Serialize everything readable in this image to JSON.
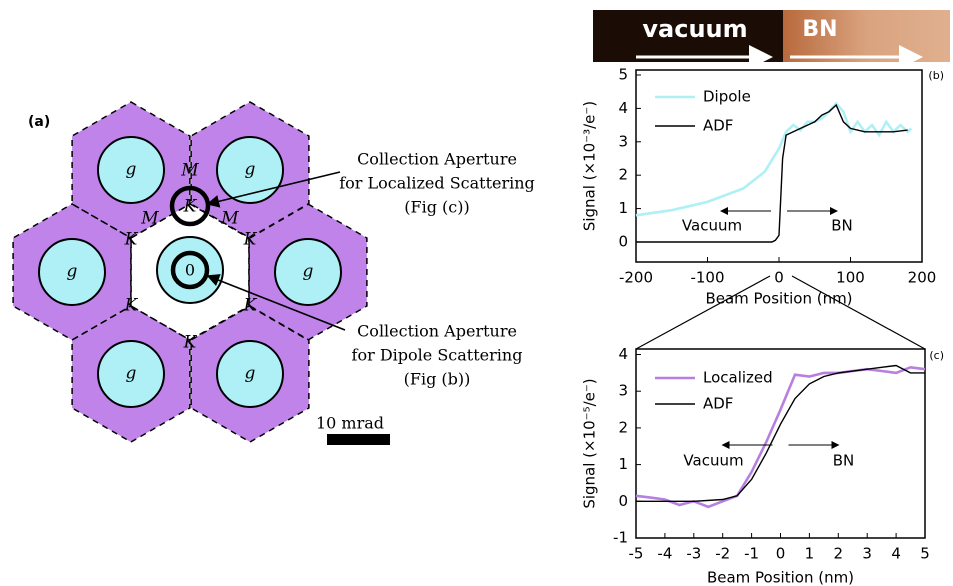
{
  "diagram": {
    "label": "(a)",
    "cell_labels": [
      "g",
      "g",
      "g",
      "g",
      "g",
      "g"
    ],
    "m_labels": [
      "M",
      "M",
      "M"
    ],
    "k_labels": [
      "K",
      "K",
      "K",
      "K",
      "K"
    ],
    "aperture_label": "K",
    "origin_label": "0",
    "callouts": [
      [
        "Collection Aperture",
        "for Localized Scattering",
        "(Fig   (c))"
      ],
      [
        "Collection Aperture",
        "for Dipole Scattering",
        "(Fig   (b))"
      ]
    ],
    "scale_bar": "10 mrad"
  },
  "image_strip": {
    "left": "vacuum",
    "right": "BN"
  },
  "chart_data": [
    {
      "type": "line",
      "label": "(b)",
      "xlabel": "Beam Position (nm)",
      "ylabel": "Signal (×10⁻³/e⁻)",
      "xlim": [
        -200,
        200
      ],
      "ylim": [
        -0.6,
        5.15
      ],
      "xticks": [
        -200,
        -100,
        0,
        100,
        200
      ],
      "yticks": [
        0,
        1,
        2,
        3,
        4,
        5
      ],
      "annotations": [
        "Vacuum",
        "BN"
      ],
      "series": [
        {
          "name": "Dipole",
          "color": "#aef0f5",
          "x": [
            -200,
            -150,
            -100,
            -50,
            -20,
            0,
            10,
            20,
            30,
            40,
            50,
            60,
            70,
            80,
            90,
            100,
            110,
            120,
            130,
            140,
            150,
            160,
            170,
            180,
            185
          ],
          "values": [
            0.8,
            0.95,
            1.2,
            1.6,
            2.1,
            2.8,
            3.3,
            3.5,
            3.35,
            3.6,
            3.6,
            3.7,
            3.9,
            4.15,
            3.9,
            3.3,
            3.6,
            3.3,
            3.5,
            3.2,
            3.6,
            3.3,
            3.5,
            3.3,
            3.4
          ]
        },
        {
          "name": "ADF",
          "color": "#000000",
          "x": [
            -200,
            -10,
            -5,
            0,
            5,
            10,
            20,
            30,
            40,
            50,
            60,
            70,
            80,
            90,
            100,
            120,
            140,
            160,
            180
          ],
          "values": [
            0,
            0,
            0.05,
            0.2,
            2.5,
            3.2,
            3.3,
            3.4,
            3.5,
            3.6,
            3.8,
            3.9,
            4.1,
            3.6,
            3.4,
            3.3,
            3.3,
            3.3,
            3.35
          ]
        }
      ]
    },
    {
      "type": "line",
      "label": "(c)",
      "xlabel": "Beam Position (nm)",
      "ylabel": "Signal (×10⁻⁵/e⁻)",
      "xlim": [
        -5,
        5
      ],
      "ylim": [
        -1,
        4.15
      ],
      "xticks": [
        -5,
        -4,
        -3,
        -2,
        -1,
        0,
        1,
        2,
        3,
        4,
        5
      ],
      "yticks": [
        -1,
        0,
        1,
        2,
        3,
        4
      ],
      "annotations": [
        "Vacuum",
        "BN"
      ],
      "series": [
        {
          "name": "Localized",
          "color": "#b77fe0",
          "x": [
            -5,
            -4.5,
            -4,
            -3.5,
            -3,
            -2.5,
            -2,
            -1.5,
            -1,
            -0.5,
            0,
            0.5,
            1,
            1.5,
            2,
            2.5,
            3,
            3.5,
            4,
            4.5,
            5
          ],
          "values": [
            0.15,
            0.1,
            0.05,
            -0.1,
            0,
            -0.15,
            0,
            0.15,
            0.8,
            1.6,
            2.5,
            3.45,
            3.4,
            3.5,
            3.5,
            3.55,
            3.6,
            3.55,
            3.5,
            3.65,
            3.6
          ]
        },
        {
          "name": "ADF",
          "color": "#000000",
          "x": [
            -5,
            -4,
            -3,
            -2,
            -1.5,
            -1,
            -0.5,
            0,
            0.5,
            1,
            1.5,
            2,
            3,
            3.5,
            4,
            4.5,
            5
          ],
          "values": [
            0,
            0,
            0,
            0.05,
            0.15,
            0.6,
            1.3,
            2.1,
            2.8,
            3.2,
            3.4,
            3.5,
            3.6,
            3.65,
            3.7,
            3.5,
            3.5
          ]
        }
      ]
    }
  ]
}
